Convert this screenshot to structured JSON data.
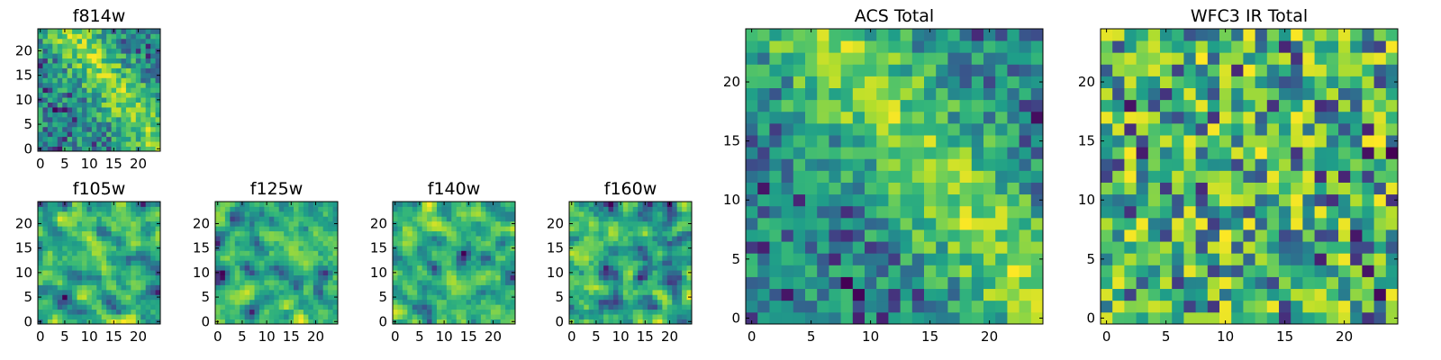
{
  "chart_data": [
    {
      "type": "heatmap",
      "title": "f814w",
      "xticks": [
        "0",
        "5",
        "10",
        "15",
        "20"
      ],
      "yticks": [
        "0",
        "5",
        "10",
        "15",
        "20"
      ],
      "xlim": [
        0,
        25
      ],
      "ylim": [
        0,
        25
      ],
      "grid": false,
      "colormap": "viridis",
      "seed": 814,
      "structure": "diagonal-band"
    },
    {
      "type": "heatmap",
      "title": "f105w",
      "xticks": [
        "0",
        "5",
        "10",
        "15",
        "20"
      ],
      "yticks": [
        "0",
        "5",
        "10",
        "15",
        "20"
      ],
      "xlim": [
        0,
        25
      ],
      "ylim": [
        0,
        25
      ],
      "grid": false,
      "colormap": "viridis",
      "seed": 105,
      "structure": "smooth"
    },
    {
      "type": "heatmap",
      "title": "f125w",
      "xticks": [
        "0",
        "5",
        "10",
        "15",
        "20"
      ],
      "yticks": [
        "0",
        "5",
        "10",
        "15",
        "20"
      ],
      "xlim": [
        0,
        25
      ],
      "ylim": [
        0,
        25
      ],
      "grid": false,
      "colormap": "viridis",
      "seed": 125,
      "structure": "smooth"
    },
    {
      "type": "heatmap",
      "title": "f140w",
      "xticks": [
        "0",
        "5",
        "10",
        "15",
        "20"
      ],
      "yticks": [
        "0",
        "5",
        "10",
        "15",
        "20"
      ],
      "xlim": [
        0,
        25
      ],
      "ylim": [
        0,
        25
      ],
      "grid": false,
      "colormap": "viridis",
      "seed": 140,
      "structure": "smooth"
    },
    {
      "type": "heatmap",
      "title": "f160w",
      "xticks": [
        "0",
        "5",
        "10",
        "15",
        "20"
      ],
      "yticks": [
        "0",
        "5",
        "10",
        "15",
        "20"
      ],
      "xlim": [
        0,
        25
      ],
      "ylim": [
        0,
        25
      ],
      "grid": false,
      "colormap": "viridis",
      "seed": 160,
      "structure": "smooth"
    },
    {
      "type": "heatmap",
      "title": "ACS Total",
      "xticks": [
        "0",
        "5",
        "10",
        "15",
        "20"
      ],
      "yticks": [
        "0",
        "5",
        "10",
        "15",
        "20"
      ],
      "xlim": [
        0,
        25
      ],
      "ylim": [
        0,
        25
      ],
      "grid": false,
      "colormap": "viridis",
      "seed": 901,
      "structure": "diagonal-band"
    },
    {
      "type": "heatmap",
      "title": "WFC3 IR Total",
      "xticks": [
        "0",
        "5",
        "10",
        "15",
        "20"
      ],
      "yticks": [
        "0",
        "5",
        "10",
        "15",
        "20"
      ],
      "xlim": [
        0,
        25
      ],
      "ylim": [
        0,
        25
      ],
      "grid": false,
      "colormap": "viridis",
      "seed": 902,
      "structure": "noise"
    }
  ]
}
